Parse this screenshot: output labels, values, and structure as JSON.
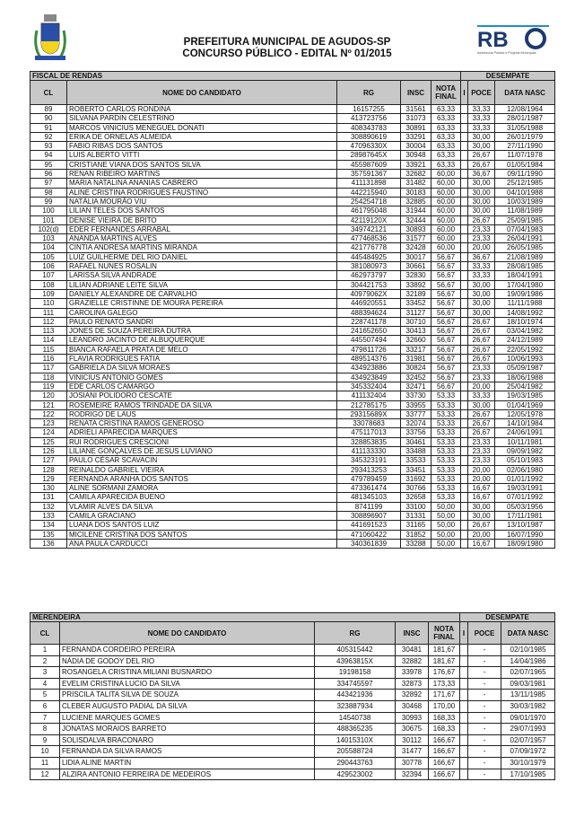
{
  "header": {
    "line1": "PREFEITURA MUNICIPAL DE AGUDOS-SP",
    "line2": "CONCURSO PÚBLICO - EDITAL Nº 01/2015",
    "logo_right_text": "RBO",
    "logo_right_caption": "Assessoria Pública e Projetos Municipais"
  },
  "columns": {
    "cl": "CL",
    "nome": "NOME DO CANDIDATO",
    "rg": "RG",
    "insc": "INSC",
    "nota": "NOTA FINAL",
    "i": "I",
    "poce": "POCE",
    "data": "DATA NASC",
    "desempate": "DESEMPATE"
  },
  "tables": [
    {
      "title": "FISCAL DE RENDAS",
      "rows": [
        [
          "89",
          "ROBERTO CARLOS RONDINA",
          "16157255",
          "31561",
          "63,33",
          "",
          "33,33",
          "12/08/1964"
        ],
        [
          "90",
          "SILVANA PARDIN CELESTRINO",
          "413723756",
          "31073",
          "63,33",
          "",
          "33,33",
          "28/01/1987"
        ],
        [
          "91",
          "MARCOS VINICIUS MENEGUEL DONATI",
          "408343783",
          "30891",
          "63,33",
          "",
          "33,33",
          "31/05/1988"
        ],
        [
          "92",
          "ERIKA DE ORNELAS ALMEIDA",
          "308890619",
          "33291",
          "63,33",
          "",
          "30,00",
          "26/01/1979"
        ],
        [
          "93",
          "FABIO RIBAS DOS SANTOS",
          "47096330X",
          "30004",
          "63,33",
          "",
          "30,00",
          "27/11/1990"
        ],
        [
          "94",
          "LUIS ALBERTO VITTI",
          "28987645X",
          "30948",
          "63,33",
          "",
          "26,67",
          "11/07/1978"
        ],
        [
          "95",
          "CRISTIANE VIANA DOS SANTOS SILVA",
          "455987609",
          "33921",
          "63,33",
          "",
          "26,67",
          "01/05/1984"
        ],
        [
          "96",
          "RENAN RIBEIRO MARTINS",
          "357591367",
          "32682",
          "60,00",
          "",
          "36,67",
          "09/11/1990"
        ],
        [
          "97",
          "MARIA NATALINA ANANIAS CABRERO",
          "411131898",
          "31482",
          "60,00",
          "",
          "30,00",
          "25/12/1985"
        ],
        [
          "98",
          "ALINE CRISTINA RODRIGUES FAUSTINO",
          "442215940",
          "30183",
          "60,00",
          "",
          "30,00",
          "04/10/1988"
        ],
        [
          "99",
          "NATÁLIA MOURÃO VIU",
          "254254718",
          "32885",
          "60,00",
          "",
          "30,00",
          "10/03/1989"
        ],
        [
          "100",
          "LILIAN TELES DOS SANTOS",
          "461795048",
          "31944",
          "60,00",
          "",
          "30,00",
          "11/08/1989"
        ],
        [
          "101",
          "DENISE VIEIRA DE BRITO",
          "42119120X",
          "32444",
          "60,00",
          "",
          "26,67",
          "25/09/1985"
        ],
        [
          "102(d)",
          "EDER FERNANDES ARRABAL",
          "349742121",
          "30893",
          "60,00",
          "",
          "23,33",
          "07/04/1983"
        ],
        [
          "103",
          "ANANDA MARTINS ALVES",
          "477468536",
          "31577",
          "60,00",
          "",
          "23,33",
          "26/04/1991"
        ],
        [
          "104",
          "CINTIA ANDRESA MARTINS MIRANDA",
          "421776778",
          "32428",
          "60,00",
          "",
          "20,00",
          "26/05/1985"
        ],
        [
          "105",
          "LUIZ GUILHERME DEL RIO DANIEL",
          "445484925",
          "30017",
          "56,67",
          "",
          "36,67",
          "21/08/1989"
        ],
        [
          "106",
          "RAFAEL NUNES ROSALIN",
          "381080973",
          "30661",
          "56,67",
          "",
          "33,33",
          "28/08/1985"
        ],
        [
          "107",
          "LARISSA SILVA ANDRADE",
          "462973797",
          "32830",
          "56,67",
          "",
          "33,33",
          "18/04/1991"
        ],
        [
          "108",
          "LILIAN ADRIANE LEITE SILVA",
          "304421753",
          "33892",
          "56,67",
          "",
          "30,00",
          "17/04/1980"
        ],
        [
          "109",
          "DANIELY ALEXANDRE DE CARVALHO",
          "40979062X",
          "32189",
          "56,67",
          "",
          "30,00",
          "19/09/1986"
        ],
        [
          "110",
          "GRAZIELLE CRISTINNE DE MOURA PEREIRA",
          "446920551",
          "33452",
          "56,67",
          "",
          "30,00",
          "11/11/1988"
        ],
        [
          "111",
          "CAROLINA GALEGO",
          "488394624",
          "31127",
          "56,67",
          "",
          "30,00",
          "14/08/1992"
        ],
        [
          "112",
          "PAULO RENATO SANDRI",
          "228741178",
          "30710",
          "56,67",
          "",
          "26,67",
          "18/10/1974"
        ],
        [
          "113",
          "JONES DE SOUZA PEREIRA DUTRA",
          "241652650",
          "30413",
          "56,67",
          "",
          "26,67",
          "03/04/1982"
        ],
        [
          "114",
          "LEANDRO JACINTO DE ALBUQUERQUE",
          "445507494",
          "32660",
          "56,67",
          "",
          "26,67",
          "24/12/1989"
        ],
        [
          "115",
          "BIANCA RAFAELA PRATA DE MELO",
          "479811726",
          "33217",
          "56,67",
          "",
          "26,67",
          "22/05/1992"
        ],
        [
          "116",
          "FLAVIA RODRIGUES FATIA",
          "489514376",
          "31981",
          "56,67",
          "",
          "26,67",
          "10/06/1993"
        ],
        [
          "117",
          "GABRIELA DA SILVA MORAES",
          "434923886",
          "30824",
          "56,67",
          "",
          "23,33",
          "05/09/1987"
        ],
        [
          "118",
          "VINICIUS ANTONIO GOMES",
          "434923849",
          "32452",
          "56,67",
          "",
          "23,33",
          "18/06/1988"
        ],
        [
          "119",
          "EDE CARLOS CAMARGO",
          "345332404",
          "32471",
          "56,67",
          "",
          "20,00",
          "25/04/1982"
        ],
        [
          "120",
          "JOSIANI POLIDORO CESCATE",
          "411132404",
          "33730",
          "53,33",
          "",
          "33,33",
          "19/03/1985"
        ],
        [
          "121",
          "ROSEMEIRE RAMOS TRINDADE DA SILVA",
          "212785175",
          "33955",
          "53,33",
          "",
          "30,00",
          "01/04/1969"
        ],
        [
          "122",
          "RODRIGO DE LAUS",
          "29315689X",
          "33777",
          "53,33",
          "",
          "26,67",
          "12/05/1978"
        ],
        [
          "123",
          "RENATA CRISTINA RAMOS GENEROSO",
          "33078683",
          "32074",
          "53,33",
          "",
          "26,67",
          "14/10/1984"
        ],
        [
          "124",
          "ADRIELI APARECIDA MARQUES",
          "475117013",
          "33756",
          "53,33",
          "",
          "26,67",
          "24/06/1991"
        ],
        [
          "125",
          "RUI RODRIGUES CRESCIONI",
          "328853835",
          "30461",
          "53,33",
          "",
          "23,33",
          "10/11/1981"
        ],
        [
          "126",
          "LILIANE GONÇALVES DE JESUS LUVIANO",
          "411133330",
          "33488",
          "53,33",
          "",
          "23,33",
          "09/09/1982"
        ],
        [
          "127",
          "PAULO CÉSAR SCAVACIN",
          "345323191",
          "33533",
          "53,33",
          "",
          "23,33",
          "05/10/1983"
        ],
        [
          "128",
          "REINALDO GABRIEL VIEIRA",
          "293413253",
          "33451",
          "53,33",
          "",
          "20,00",
          "02/06/1980"
        ],
        [
          "129",
          "FERNANDA ARANHA DOS SANTOS",
          "479789459",
          "31692",
          "53,33",
          "",
          "20,00",
          "01/01/1992"
        ],
        [
          "130",
          "ALINE SORMANI ZAMORA",
          "473361474",
          "30766",
          "53,33",
          "",
          "16,67",
          "19/03/1991"
        ],
        [
          "131",
          "CAMILA APARECIDA BUENO",
          "481345103",
          "32658",
          "53,33",
          "",
          "16,67",
          "07/01/1992"
        ],
        [
          "132",
          "VLAMIR ALVES DA SILVA",
          "8741199",
          "33100",
          "50,00",
          "",
          "30,00",
          "05/03/1956"
        ],
        [
          "133",
          "CAMILA GRACIANO",
          "308896907",
          "31331",
          "50,00",
          "",
          "30,00",
          "17/11/1981"
        ],
        [
          "134",
          "LUANA DOS SANTOS LUIZ",
          "441691523",
          "31165",
          "50,00",
          "",
          "26,67",
          "13/10/1987"
        ],
        [
          "135",
          "MICILENE CRISTINA DOS SANTOS",
          "471060422",
          "31852",
          "50,00",
          "",
          "20,00",
          "16/07/1990"
        ],
        [
          "136",
          "ANA PAULA CARDUCCI",
          "340361839",
          "33288",
          "50,00",
          "",
          "16,67",
          "18/09/1980"
        ]
      ]
    },
    {
      "title": "MERENDEIRA",
      "rows": [
        [
          "1",
          "FERNANDA CORDEIRO PEREIRA",
          "405315442",
          "30481",
          "181,67",
          "",
          "-",
          "02/10/1985"
        ],
        [
          "2",
          "NÁDIA DE GODOY DEL RIO",
          "43963815X",
          "32882",
          "181,67",
          "",
          "-",
          "14/04/1986"
        ],
        [
          "3",
          "ROSANGELA CRISTINA MILIANI BUSNARDO",
          "19198158",
          "33978",
          "176,67",
          "",
          "-",
          "02/07/1965"
        ],
        [
          "4",
          "EVELIM CRISTINA LUCIO DA SILVA",
          "334745597",
          "32873",
          "173,33",
          "",
          "-",
          "09/03/1981"
        ],
        [
          "5",
          "PRISCILA TALITA SILVA DE SOUZA",
          "443421936",
          "32892",
          "171,67",
          "",
          "-",
          "13/11/1985"
        ],
        [
          "6",
          "CLEBER AUGUSTO PADIAL DA SILVA",
          "323887934",
          "30468",
          "170,00",
          "",
          "-",
          "30/03/1982"
        ],
        [
          "7",
          "LUCIENE MARQUES GOMES",
          "14540738",
          "30993",
          "168,33",
          "",
          "-",
          "09/01/1970"
        ],
        [
          "8",
          "JONATAS MORAIOS BARRETO",
          "488365235",
          "30675",
          "168,33",
          "",
          "-",
          "29/07/1993"
        ],
        [
          "9",
          "SOLISDALVA BRACONARO",
          "14015310X",
          "30112",
          "166,67",
          "",
          "-",
          "02/07/1957"
        ],
        [
          "10",
          "FERNANDA DA SILVA RAMOS",
          "205588724",
          "31477",
          "166,67",
          "",
          "-",
          "07/09/1972"
        ],
        [
          "11",
          "LIDIA ALINE MARTIN",
          "290443763",
          "30778",
          "166,67",
          "",
          "-",
          "30/10/1979"
        ],
        [
          "12",
          "ALZIRA ANTONIO FERREIRA DE MEDEIROS",
          "429523002",
          "32394",
          "166,67",
          "",
          "-",
          "17/10/1985"
        ]
      ]
    }
  ]
}
